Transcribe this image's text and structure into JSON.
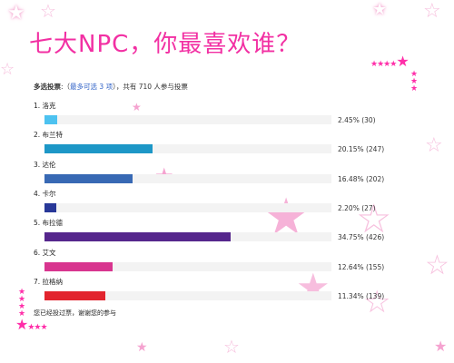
{
  "title": "七大NPC，你最喜欢谁？",
  "summary": {
    "type_label": "多选投票",
    "paren_open": ":（",
    "limit": "最多可选 3 项",
    "rest": "），共有 710 人参与投票"
  },
  "options": [
    {
      "index": "1.",
      "name": "洛克",
      "percent": "2.45% (30)",
      "fraction": 0.0245,
      "color": "#4dc2f0"
    },
    {
      "index": "2.",
      "name": "布兰特",
      "percent": "20.15% (247)",
      "fraction": 0.2015,
      "color": "#1d97c7"
    },
    {
      "index": "3.",
      "name": "达伦",
      "percent": "16.48% (202)",
      "fraction": 0.1648,
      "color": "#3869b4"
    },
    {
      "index": "4.",
      "name": "卡尔",
      "percent": "2.20% (27)",
      "fraction": 0.022,
      "color": "#283898"
    },
    {
      "index": "5.",
      "name": "布拉德",
      "percent": "34.75% (426)",
      "fraction": 0.3475,
      "color": "#55268c"
    },
    {
      "index": "6.",
      "name": "艾文",
      "percent": "12.64% (155)",
      "fraction": 0.1264,
      "color": "#d8358f"
    },
    {
      "index": "7.",
      "name": "拉格纳",
      "percent": "11.34% (139)",
      "fraction": 0.1134,
      "color": "#e2242e"
    }
  ],
  "voted_message": "您已经投过票，谢谢您的参与",
  "decorations": {
    "star_solid": "★",
    "star_outline": "☆"
  },
  "colors": {
    "title": "#f230a3",
    "track": "#f3f3f3",
    "accent_pink": "#ff2fa9"
  }
}
